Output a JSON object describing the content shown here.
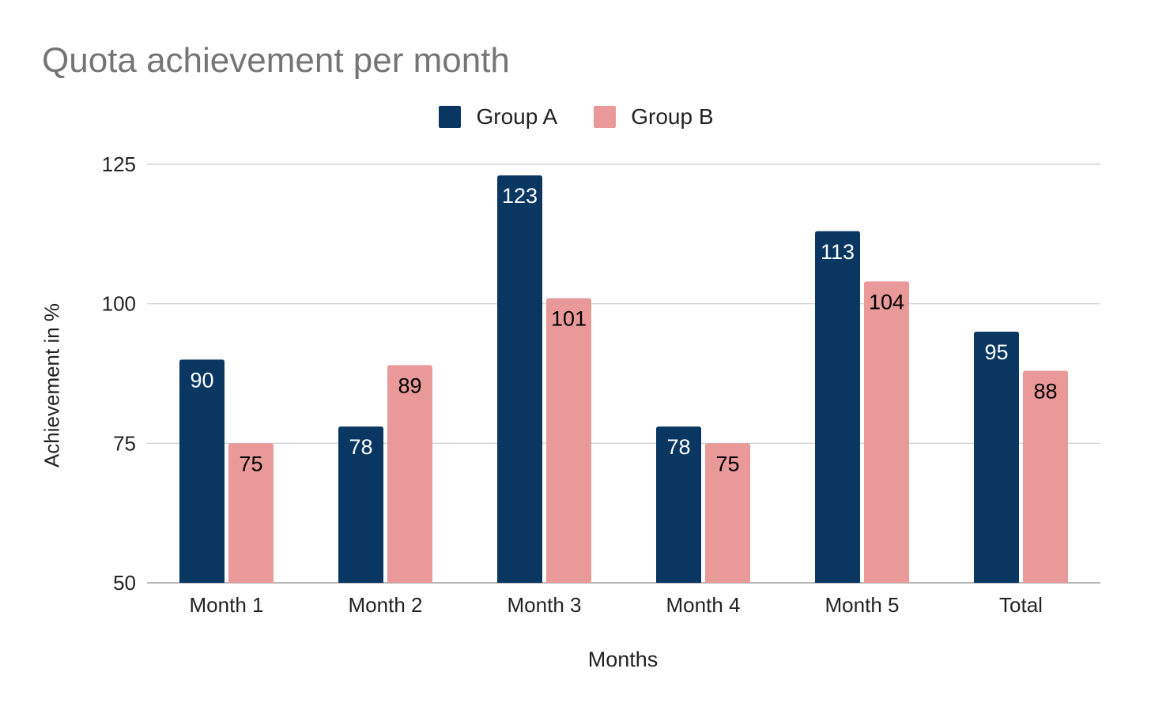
{
  "chart_data": {
    "type": "bar",
    "title": "Quota achievement per month",
    "xlabel": "Months",
    "ylabel": "Achievement in %",
    "categories": [
      "Month 1",
      "Month 2",
      "Month 3",
      "Month 4",
      "Month 5",
      "Total"
    ],
    "series": [
      {
        "name": "Group A",
        "color": "#0a3761",
        "label_color": "#ffffff",
        "values": [
          90,
          78,
          123,
          78,
          113,
          95
        ]
      },
      {
        "name": "Group B",
        "color": "#ea9999",
        "label_color": "#000000",
        "values": [
          75,
          89,
          101,
          75,
          104,
          88
        ]
      }
    ],
    "ylim": [
      50,
      125
    ],
    "yticks": [
      50,
      75,
      100,
      125
    ],
    "grid": true,
    "legend_position": "top-center",
    "data_labels": true
  }
}
